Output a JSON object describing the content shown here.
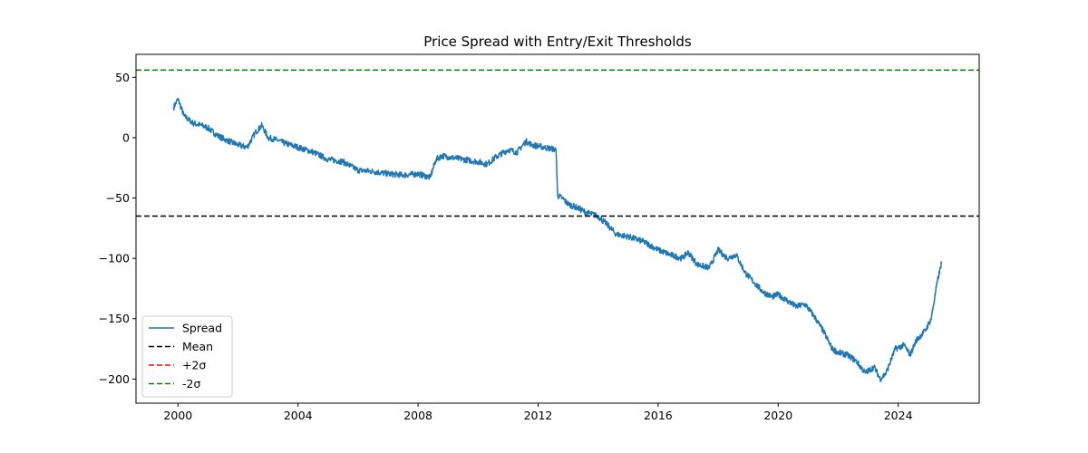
{
  "chart_data": {
    "type": "line",
    "title": "Price Spread with Entry/Exit Thresholds",
    "xlabel": "",
    "ylabel": "",
    "xlim": [
      1998.6,
      2026.7
    ],
    "ylim": [
      -220,
      69
    ],
    "x_ticks": [
      2000,
      2004,
      2008,
      2012,
      2016,
      2020,
      2024
    ],
    "x_tick_labels": [
      "2000",
      "2004",
      "2008",
      "2012",
      "2016",
      "2020",
      "2024"
    ],
    "y_ticks": [
      50,
      0,
      -50,
      -100,
      -150,
      -200
    ],
    "y_tick_labels": [
      "50",
      "0",
      "−50",
      "−100",
      "−150",
      "−200"
    ],
    "grid": false,
    "legend_position": "lower-left",
    "series": [
      {
        "name": "Spread",
        "color": "#1f77b4",
        "style": "solid",
        "x": [
          1999.85,
          2000.0,
          2000.2,
          2000.5,
          2000.8,
          2001.0,
          2001.3,
          2001.6,
          2002.0,
          2002.3,
          2002.6,
          2002.8,
          2003.0,
          2003.3,
          2003.6,
          2004.0,
          2004.5,
          2005.0,
          2005.5,
          2006.0,
          2006.5,
          2007.0,
          2007.5,
          2008.0,
          2008.4,
          2008.6,
          2008.8,
          2009.0,
          2009.5,
          2010.0,
          2010.3,
          2010.6,
          2011.0,
          2011.3,
          2011.6,
          2011.8,
          2012.2,
          2012.6,
          2012.65,
          2012.8,
          2013.0,
          2013.3,
          2013.6,
          2014.0,
          2014.3,
          2014.6,
          2015.0,
          2015.5,
          2016.0,
          2016.4,
          2016.8,
          2017.0,
          2017.3,
          2017.7,
          2018.0,
          2018.3,
          2018.6,
          2018.9,
          2019.2,
          2019.5,
          2019.8,
          2020.0,
          2020.3,
          2020.6,
          2020.9,
          2021.2,
          2021.5,
          2021.8,
          2022.0,
          2022.3,
          2022.6,
          2022.9,
          2023.2,
          2023.4,
          2023.6,
          2023.9,
          2024.2,
          2024.4,
          2024.6,
          2024.9,
          2025.1,
          2025.3,
          2025.45
        ],
        "y": [
          25,
          32,
          18,
          12,
          10,
          8,
          2,
          -2,
          -6,
          -8,
          5,
          10,
          0,
          -2,
          -5,
          -8,
          -12,
          -18,
          -20,
          -27,
          -28,
          -30,
          -31,
          -30,
          -33,
          -18,
          -15,
          -16,
          -18,
          -20,
          -22,
          -16,
          -10,
          -12,
          -3,
          -6,
          -8,
          -10,
          -48,
          -50,
          -55,
          -58,
          -62,
          -65,
          -72,
          -80,
          -82,
          -86,
          -93,
          -97,
          -100,
          -95,
          -105,
          -108,
          -93,
          -100,
          -97,
          -112,
          -120,
          -128,
          -132,
          -130,
          -135,
          -140,
          -138,
          -148,
          -160,
          -175,
          -178,
          -180,
          -185,
          -195,
          -190,
          -200,
          -195,
          -175,
          -172,
          -180,
          -168,
          -160,
          -150,
          -120,
          -103
        ]
      },
      {
        "name": "Mean",
        "color": "#000000",
        "style": "dashed",
        "y": -65
      },
      {
        "name": "+2σ",
        "color": "#ff0000",
        "style": "dashed",
        "y": null
      },
      {
        "name": "-2σ",
        "color": "#008000",
        "style": "dashed",
        "y": 56
      }
    ]
  }
}
